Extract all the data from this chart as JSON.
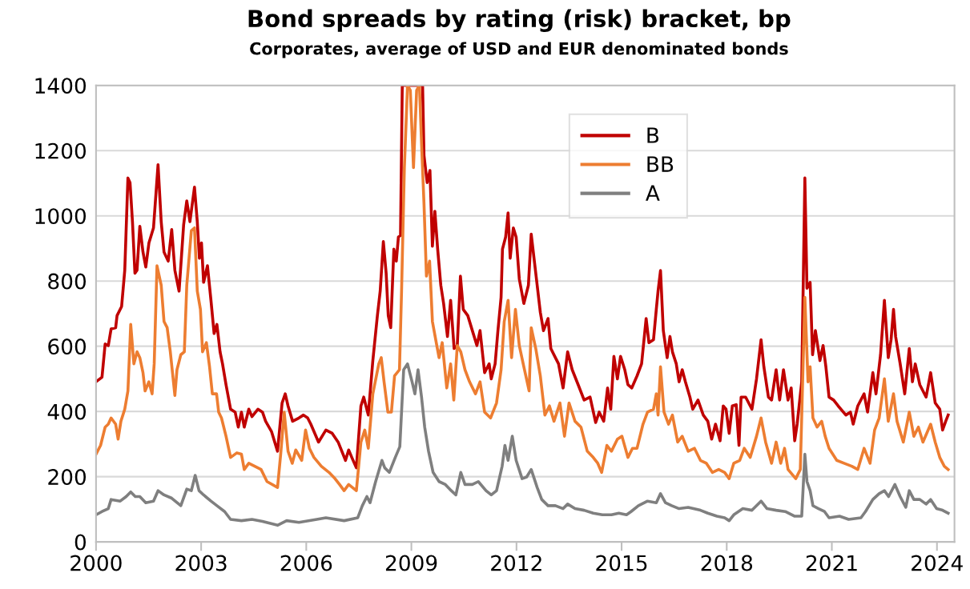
{
  "chart_data": {
    "type": "line",
    "title": "Bond spreads by rating (risk) bracket, bp",
    "subtitle": "Corporates, average of USD and EUR denominated bonds",
    "xlim": [
      2000,
      2024.5
    ],
    "xticks": [
      2000,
      2003,
      2006,
      2009,
      2012,
      2015,
      2018,
      2021,
      2024
    ],
    "ylim": [
      0,
      1400
    ],
    "yticks": [
      0,
      200,
      400,
      600,
      800,
      1000,
      1200,
      1400
    ],
    "grid": "y",
    "legend": "top",
    "marker": "none",
    "line_style": "solid",
    "series": [
      {
        "name": "B",
        "color": "#c00000",
        "x": [
          2000.0,
          2000.17,
          2000.26,
          2000.35,
          2000.43,
          2000.56,
          2000.6,
          2000.73,
          2000.82,
          2000.91,
          2000.97,
          2001.04,
          2001.11,
          2001.17,
          2001.25,
          2001.34,
          2001.42,
          2001.51,
          2001.64,
          2001.77,
          2001.86,
          2001.94,
          2002.06,
          2002.16,
          2002.25,
          2002.37,
          2002.5,
          2002.59,
          2002.68,
          2002.81,
          2002.89,
          2002.95,
          2003.01,
          2003.07,
          2003.18,
          2003.28,
          2003.37,
          2003.45,
          2003.54,
          2003.61,
          2003.71,
          2003.84,
          2003.97,
          2004.06,
          2004.15,
          2004.23,
          2004.36,
          2004.45,
          2004.62,
          2004.75,
          2004.84,
          2005.01,
          2005.18,
          2005.31,
          2005.4,
          2005.48,
          2005.61,
          2005.79,
          2005.92,
          2006.04,
          2006.13,
          2006.35,
          2006.56,
          2006.74,
          2006.91,
          2007.12,
          2007.21,
          2007.3,
          2007.43,
          2007.56,
          2007.64,
          2007.77,
          2007.9,
          2008.03,
          2008.11,
          2008.2,
          2008.28,
          2008.34,
          2008.41,
          2008.5,
          2008.57,
          2008.63,
          2008.69,
          2008.74,
          2008.8,
          2009.32,
          2009.36,
          2009.45,
          2009.53,
          2009.6,
          2009.67,
          2009.75,
          2009.84,
          2009.92,
          2010.03,
          2010.12,
          2010.22,
          2010.31,
          2010.4,
          2010.48,
          2010.61,
          2010.74,
          2010.87,
          2010.96,
          2011.09,
          2011.22,
          2011.28,
          2011.39,
          2011.47,
          2011.56,
          2011.6,
          2011.69,
          2011.76,
          2011.82,
          2011.91,
          2011.99,
          2012.08,
          2012.21,
          2012.34,
          2012.42,
          2012.55,
          2012.68,
          2012.77,
          2012.9,
          2012.98,
          2013.11,
          2013.2,
          2013.33,
          2013.46,
          2013.59,
          2013.76,
          2013.93,
          2014.1,
          2014.26,
          2014.36,
          2014.49,
          2014.6,
          2014.69,
          2014.78,
          2014.88,
          2014.97,
          2015.09,
          2015.18,
          2015.29,
          2015.44,
          2015.57,
          2015.7,
          2015.78,
          2015.91,
          2015.99,
          2016.04,
          2016.11,
          2016.19,
          2016.3,
          2016.38,
          2016.45,
          2016.56,
          2016.64,
          2016.73,
          2016.82,
          2016.95,
          2017.03,
          2017.18,
          2017.33,
          2017.46,
          2017.57,
          2017.68,
          2017.81,
          2017.9,
          2017.98,
          2018.07,
          2018.16,
          2018.27,
          2018.35,
          2018.41,
          2018.54,
          2018.72,
          2018.85,
          2018.98,
          2019.06,
          2019.19,
          2019.28,
          2019.41,
          2019.51,
          2019.62,
          2019.75,
          2019.84,
          2019.94,
          2020.01,
          2020.14,
          2020.23,
          2020.29,
          2020.38,
          2020.45,
          2020.53,
          2020.66,
          2020.75,
          2020.83,
          2020.92,
          2021.05,
          2021.18,
          2021.4,
          2021.53,
          2021.61,
          2021.74,
          2021.92,
          2022.02,
          2022.17,
          2022.26,
          2022.39,
          2022.5,
          2022.61,
          2022.69,
          2022.76,
          2022.82,
          2022.95,
          2023.08,
          2023.21,
          2023.3,
          2023.38,
          2023.51,
          2023.69,
          2023.82,
          2023.95,
          2024.08,
          2024.16,
          2024.25,
          2024.32
        ],
        "values": [
          491,
          505,
          607,
          602,
          653,
          657,
          694,
          722,
          833,
          1116,
          1102,
          982,
          824,
          833,
          968,
          889,
          843,
          917,
          963,
          1157,
          982,
          889,
          861,
          958,
          833,
          769,
          972,
          1046,
          982,
          1088,
          982,
          870,
          917,
          796,
          847,
          741,
          639,
          667,
          583,
          546,
          482,
          407,
          398,
          352,
          398,
          352,
          407,
          384,
          407,
          398,
          370,
          338,
          278,
          426,
          454,
          417,
          370,
          380,
          389,
          380,
          361,
          306,
          343,
          333,
          306,
          250,
          282,
          259,
          227,
          417,
          444,
          389,
          556,
          694,
          769,
          921,
          824,
          694,
          657,
          898,
          861,
          935,
          940,
          1400,
          1400,
          1400,
          1185,
          1102,
          1139,
          907,
          1014,
          898,
          787,
          731,
          630,
          741,
          593,
          602,
          815,
          713,
          694,
          648,
          602,
          648,
          519,
          546,
          500,
          546,
          648,
          750,
          898,
          935,
          1009,
          870,
          963,
          935,
          806,
          731,
          787,
          944,
          824,
          704,
          648,
          685,
          593,
          565,
          546,
          472,
          583,
          528,
          482,
          435,
          444,
          366,
          398,
          370,
          472,
          407,
          569,
          500,
          569,
          528,
          482,
          472,
          509,
          546,
          685,
          611,
          620,
          713,
          769,
          832,
          648,
          565,
          630,
          583,
          546,
          491,
          528,
          491,
          444,
          407,
          435,
          389,
          370,
          315,
          361,
          310,
          417,
          407,
          333,
          417,
          421,
          296,
          444,
          444,
          407,
          500,
          620,
          537,
          444,
          435,
          528,
          435,
          528,
          435,
          472,
          310,
          361,
          491,
          1116,
          778,
          796,
          574,
          648,
          556,
          602,
          537,
          444,
          435,
          417,
          389,
          398,
          361,
          417,
          454,
          398,
          519,
          454,
          574,
          741,
          565,
          620,
          713,
          630,
          546,
          454,
          593,
          491,
          546,
          482,
          444,
          519,
          426,
          407,
          343,
          370,
          389
        ]
      },
      {
        "name": "BB",
        "color": "#ed7d31",
        "x": [
          2000.0,
          2000.13,
          2000.26,
          2000.35,
          2000.43,
          2000.56,
          2000.63,
          2000.71,
          2000.82,
          2000.91,
          2000.99,
          2001.08,
          2001.17,
          2001.25,
          2001.34,
          2001.4,
          2001.51,
          2001.6,
          2001.66,
          2001.74,
          2001.86,
          2001.94,
          2002.03,
          2002.12,
          2002.25,
          2002.31,
          2002.42,
          2002.52,
          2002.59,
          2002.72,
          2002.81,
          2002.89,
          2002.98,
          2003.04,
          2003.15,
          2003.24,
          2003.32,
          2003.44,
          2003.5,
          2003.58,
          2003.71,
          2003.84,
          2004.02,
          2004.15,
          2004.23,
          2004.36,
          2004.53,
          2004.71,
          2004.88,
          2005.18,
          2005.27,
          2005.37,
          2005.48,
          2005.6,
          2005.7,
          2005.87,
          2005.98,
          2006.09,
          2006.22,
          2006.43,
          2006.65,
          2006.82,
          2006.95,
          2007.08,
          2007.21,
          2007.43,
          2007.56,
          2007.67,
          2007.77,
          2007.9,
          2008.07,
          2008.14,
          2008.22,
          2008.33,
          2008.43,
          2008.52,
          2008.66,
          2008.72,
          2008.8,
          2008.89,
          2008.97,
          2009.06,
          2009.15,
          2009.23,
          2009.29,
          2009.36,
          2009.43,
          2009.52,
          2009.6,
          2009.71,
          2009.79,
          2009.88,
          2010.01,
          2010.12,
          2010.21,
          2010.31,
          2010.41,
          2010.53,
          2010.66,
          2010.83,
          2010.96,
          2011.09,
          2011.26,
          2011.43,
          2011.56,
          2011.65,
          2011.76,
          2011.86,
          2011.97,
          2012.08,
          2012.21,
          2012.36,
          2012.42,
          2012.55,
          2012.68,
          2012.81,
          2012.94,
          2013.07,
          2013.24,
          2013.37,
          2013.5,
          2013.67,
          2013.84,
          2014.02,
          2014.19,
          2014.32,
          2014.43,
          2014.58,
          2014.71,
          2014.88,
          2015.01,
          2015.18,
          2015.31,
          2015.44,
          2015.61,
          2015.74,
          2015.91,
          2015.99,
          2016.04,
          2016.11,
          2016.21,
          2016.34,
          2016.45,
          2016.6,
          2016.73,
          2016.9,
          2017.08,
          2017.25,
          2017.42,
          2017.59,
          2017.77,
          2017.94,
          2018.07,
          2018.2,
          2018.37,
          2018.5,
          2018.67,
          2018.85,
          2018.98,
          2019.11,
          2019.28,
          2019.41,
          2019.54,
          2019.65,
          2019.75,
          2019.97,
          2020.1,
          2020.23,
          2020.32,
          2020.38,
          2020.46,
          2020.58,
          2020.71,
          2020.81,
          2020.92,
          2021.14,
          2021.35,
          2021.57,
          2021.74,
          2021.92,
          2022.09,
          2022.22,
          2022.35,
          2022.5,
          2022.61,
          2022.76,
          2022.86,
          2023.04,
          2023.21,
          2023.34,
          2023.47,
          2023.6,
          2023.82,
          2023.95,
          2024.08,
          2024.21,
          2024.32
        ],
        "values": [
          269,
          296,
          352,
          361,
          380,
          361,
          315,
          370,
          407,
          463,
          667,
          546,
          583,
          565,
          519,
          463,
          491,
          454,
          546,
          847,
          787,
          676,
          657,
          583,
          449,
          528,
          574,
          583,
          787,
          954,
          963,
          769,
          713,
          583,
          611,
          537,
          454,
          454,
          398,
          380,
          324,
          259,
          273,
          269,
          222,
          241,
          232,
          222,
          185,
          167,
          269,
          398,
          278,
          241,
          282,
          250,
          343,
          287,
          259,
          232,
          213,
          194,
          176,
          157,
          176,
          157,
          306,
          343,
          287,
          454,
          546,
          565,
          491,
          398,
          398,
          509,
          528,
          769,
          1148,
          1400,
          1385,
          1148,
          1385,
          1400,
          1222,
          1037,
          815,
          861,
          676,
          611,
          565,
          611,
          472,
          546,
          435,
          602,
          583,
          528,
          491,
          454,
          491,
          398,
          380,
          426,
          528,
          676,
          741,
          565,
          713,
          602,
          537,
          463,
          657,
          593,
          509,
          389,
          417,
          370,
          426,
          324,
          426,
          370,
          352,
          278,
          259,
          241,
          213,
          296,
          278,
          315,
          324,
          259,
          287,
          287,
          361,
          398,
          407,
          454,
          389,
          537,
          398,
          361,
          389,
          306,
          324,
          278,
          287,
          250,
          241,
          213,
          222,
          213,
          194,
          241,
          250,
          287,
          259,
          324,
          380,
          306,
          241,
          306,
          241,
          287,
          222,
          194,
          222,
          750,
          491,
          537,
          380,
          352,
          370,
          324,
          287,
          250,
          241,
          232,
          222,
          287,
          241,
          343,
          380,
          500,
          370,
          454,
          370,
          306,
          398,
          324,
          352,
          306,
          361,
          306,
          259,
          232,
          222
        ]
      },
      {
        "name": "A",
        "color": "#7f7f7f",
        "x": [
          2000.0,
          2000.17,
          2000.35,
          2000.43,
          2000.69,
          2000.86,
          2000.99,
          2001.12,
          2001.25,
          2001.42,
          2001.64,
          2001.77,
          2001.94,
          2002.16,
          2002.42,
          2002.59,
          2002.72,
          2002.83,
          2002.94,
          2003.07,
          2003.28,
          2003.45,
          2003.67,
          2003.84,
          2004.15,
          2004.45,
          2004.75,
          2005.18,
          2005.44,
          2005.79,
          2006.3,
          2006.56,
          2007.08,
          2007.47,
          2007.6,
          2007.73,
          2007.82,
          2007.98,
          2008.16,
          2008.24,
          2008.37,
          2008.54,
          2008.67,
          2008.78,
          2008.89,
          2009.02,
          2009.1,
          2009.19,
          2009.29,
          2009.38,
          2009.49,
          2009.62,
          2009.79,
          2009.97,
          2010.14,
          2010.27,
          2010.41,
          2010.53,
          2010.74,
          2010.91,
          2011.13,
          2011.28,
          2011.43,
          2011.59,
          2011.67,
          2011.76,
          2011.88,
          2011.99,
          2012.16,
          2012.29,
          2012.42,
          2012.59,
          2012.72,
          2012.9,
          2013.11,
          2013.33,
          2013.46,
          2013.67,
          2013.93,
          2014.19,
          2014.45,
          2014.71,
          2014.92,
          2015.14,
          2015.27,
          2015.48,
          2015.74,
          2015.99,
          2016.11,
          2016.25,
          2016.43,
          2016.64,
          2016.9,
          2017.25,
          2017.46,
          2017.72,
          2017.94,
          2018.07,
          2018.2,
          2018.46,
          2018.72,
          2018.98,
          2019.15,
          2019.41,
          2019.67,
          2019.93,
          2020.14,
          2020.23,
          2020.29,
          2020.38,
          2020.46,
          2020.62,
          2020.79,
          2020.92,
          2021.22,
          2021.48,
          2021.83,
          2021.96,
          2022.17,
          2022.35,
          2022.5,
          2022.62,
          2022.8,
          2022.95,
          2023.11,
          2023.21,
          2023.34,
          2023.51,
          2023.69,
          2023.82,
          2023.99,
          2024.16,
          2024.32
        ],
        "values": [
          83,
          93,
          102,
          130,
          125,
          139,
          153,
          139,
          139,
          120,
          125,
          157,
          144,
          134,
          111,
          162,
          157,
          204,
          157,
          144,
          125,
          111,
          93,
          69,
          65,
          69,
          63,
          51,
          65,
          60,
          69,
          74,
          65,
          74,
          111,
          139,
          120,
          185,
          250,
          227,
          213,
          259,
          292,
          528,
          546,
          491,
          454,
          528,
          444,
          352,
          278,
          213,
          185,
          176,
          157,
          144,
          213,
          176,
          176,
          185,
          157,
          144,
          157,
          232,
          296,
          250,
          324,
          250,
          194,
          199,
          222,
          167,
          130,
          111,
          111,
          102,
          116,
          102,
          97,
          88,
          83,
          83,
          88,
          83,
          93,
          111,
          125,
          120,
          148,
          120,
          111,
          102,
          106,
          97,
          88,
          79,
          74,
          65,
          83,
          102,
          97,
          125,
          102,
          97,
          93,
          79,
          79,
          269,
          185,
          157,
          111,
          102,
          93,
          74,
          79,
          69,
          74,
          93,
          130,
          148,
          157,
          139,
          176,
          139,
          106,
          157,
          130,
          130,
          116,
          130,
          102,
          97,
          88
        ]
      }
    ]
  }
}
